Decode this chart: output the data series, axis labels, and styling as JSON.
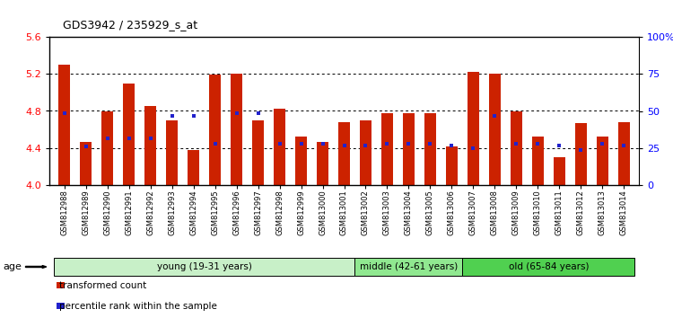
{
  "title": "GDS3942 / 235929_s_at",
  "samples": [
    "GSM812988",
    "GSM812989",
    "GSM812990",
    "GSM812991",
    "GSM812992",
    "GSM812993",
    "GSM812994",
    "GSM812995",
    "GSM812996",
    "GSM812997",
    "GSM812998",
    "GSM812999",
    "GSM813000",
    "GSM813001",
    "GSM813002",
    "GSM813003",
    "GSM813004",
    "GSM813005",
    "GSM813006",
    "GSM813007",
    "GSM813008",
    "GSM813009",
    "GSM813010",
    "GSM813011",
    "GSM813012",
    "GSM813013",
    "GSM813014"
  ],
  "red_values": [
    5.3,
    4.47,
    4.8,
    5.1,
    4.85,
    4.7,
    4.38,
    5.19,
    5.2,
    4.7,
    4.82,
    4.52,
    4.47,
    4.68,
    4.7,
    4.78,
    4.78,
    4.78,
    4.42,
    5.22,
    5.2,
    4.8,
    4.52,
    4.3,
    4.67,
    4.52,
    4.68
  ],
  "blue_values": [
    4.78,
    4.42,
    4.5,
    4.5,
    4.5,
    4.75,
    4.75,
    4.45,
    4.78,
    4.78,
    4.45,
    4.45,
    4.45,
    4.43,
    4.43,
    4.45,
    4.45,
    4.45,
    4.43,
    4.4,
    4.75,
    4.45,
    4.45,
    4.43,
    4.38,
    4.45,
    4.43
  ],
  "groups": [
    {
      "label": "young (19-31 years)",
      "start": 0,
      "end": 14,
      "color": "#c8f0c8"
    },
    {
      "label": "middle (42-61 years)",
      "start": 14,
      "end": 19,
      "color": "#90e890"
    },
    {
      "label": "old (65-84 years)",
      "start": 19,
      "end": 27,
      "color": "#50d050"
    }
  ],
  "ylim_left": [
    4.0,
    5.6
  ],
  "ylim_right": [
    0,
    100
  ],
  "yticks_left": [
    4.0,
    4.4,
    4.8,
    5.2,
    5.6
  ],
  "yticks_right": [
    0,
    25,
    50,
    75,
    100
  ],
  "ytick_labels_right": [
    "0",
    "25",
    "50",
    "75",
    "100%"
  ],
  "bar_color": "#cc2200",
  "dot_color": "#2222cc",
  "legend": [
    {
      "label": "transformed count",
      "color": "#cc2200"
    },
    {
      "label": "percentile rank within the sample",
      "color": "#2222cc"
    }
  ]
}
